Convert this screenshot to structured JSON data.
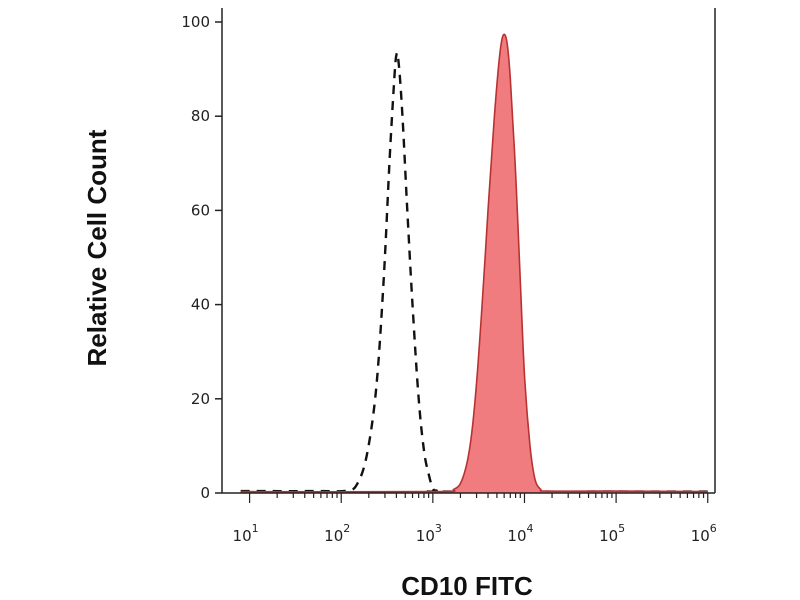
{
  "chart_data": {
    "type": "area",
    "xlabel": "CD10 FITC",
    "ylabel": "Relative Cell Count",
    "x_scale": "log",
    "xlim": [
      5,
      1200000
    ],
    "ylim": [
      0,
      100
    ],
    "x_ticks": [
      {
        "base": "10",
        "exp": "1",
        "value": 10
      },
      {
        "base": "10",
        "exp": "2",
        "value": 100
      },
      {
        "base": "10",
        "exp": "3",
        "value": 1000
      },
      {
        "base": "10",
        "exp": "4",
        "value": 10000
      },
      {
        "base": "10",
        "exp": "5",
        "value": 100000
      },
      {
        "base": "10",
        "exp": "6",
        "value": 1000000
      }
    ],
    "y_ticks": [
      "0",
      "20",
      "40",
      "60",
      "80",
      "100"
    ],
    "grid": false,
    "series": [
      {
        "style": "dashed-outline",
        "color": "#111111",
        "points": [
          [
            8,
            0.4
          ],
          [
            50,
            0.4
          ],
          [
            115,
            0.5
          ],
          [
            150,
            2
          ],
          [
            190,
            8
          ],
          [
            240,
            22
          ],
          [
            290,
            45
          ],
          [
            340,
            72
          ],
          [
            380,
            88
          ],
          [
            400,
            93
          ],
          [
            420,
            92
          ],
          [
            460,
            82
          ],
          [
            520,
            62
          ],
          [
            600,
            40
          ],
          [
            700,
            20
          ],
          [
            800,
            9
          ],
          [
            900,
            4
          ],
          [
            1000,
            1
          ],
          [
            1100,
            0.5
          ],
          [
            1500,
            0.3
          ],
          [
            1000000,
            0.3
          ]
        ]
      },
      {
        "style": "filled",
        "color": "#f07c80",
        "stroke": "#b83232",
        "points": [
          [
            8,
            0.3
          ],
          [
            1000,
            0.3
          ],
          [
            1700,
            0.8
          ],
          [
            2100,
            3
          ],
          [
            2500,
            9
          ],
          [
            2900,
            20
          ],
          [
            3400,
            38
          ],
          [
            4000,
            60
          ],
          [
            4700,
            80
          ],
          [
            5300,
            92
          ],
          [
            5800,
            97
          ],
          [
            6400,
            96
          ],
          [
            7000,
            88
          ],
          [
            8000,
            68
          ],
          [
            9000,
            45
          ],
          [
            10000,
            25
          ],
          [
            11500,
            10
          ],
          [
            13000,
            3
          ],
          [
            15000,
            0.8
          ],
          [
            18000,
            0.4
          ],
          [
            100000,
            0.4
          ],
          [
            1000000,
            0.3
          ]
        ]
      }
    ]
  }
}
